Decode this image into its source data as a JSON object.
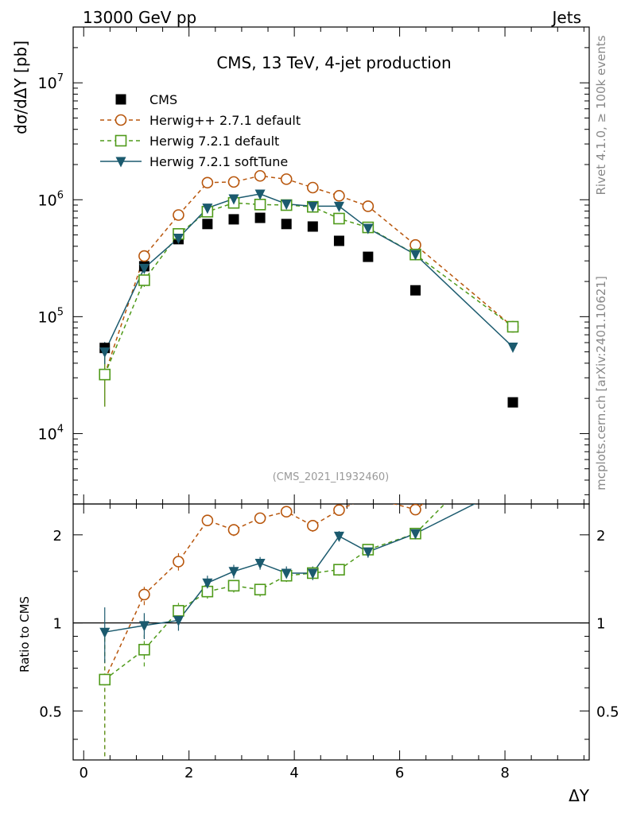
{
  "header": {
    "left": "13000 GeV pp",
    "right": "Jets"
  },
  "side_labels": {
    "rivet": "Rivet 4.1.0, ≥ 100k events",
    "mcplots": "mcplots.cern.ch [arXiv:2401.10621]"
  },
  "chart_data": {
    "type": "scatter",
    "title": "CMS, 13 TeV, 4-jet production",
    "analysis_tag": "(CMS_2021_I1932460)",
    "xlabel": "ΔY",
    "ylabel": "dσ/dΔY [pb]",
    "ratio_ylabel": "Ratio to CMS",
    "xlim": [
      -0.2,
      9.6
    ],
    "ylim": [
      2500,
      30000000
    ],
    "ratio_ylim": [
      0.34,
      2.55
    ],
    "x_ticks": [
      0,
      2,
      4,
      6,
      8
    ],
    "x_tick_labels": [
      "0",
      "2",
      "4",
      "6",
      "8"
    ],
    "y_ticks": [
      10000,
      100000,
      1000000,
      10000000
    ],
    "y_tick_labels": [
      {
        "base": "10",
        "exp": "4"
      },
      {
        "base": "10",
        "exp": "5"
      },
      {
        "base": "10",
        "exp": "6"
      },
      {
        "base": "10",
        "exp": "7"
      }
    ],
    "ratio_ticks": [
      0.5,
      1,
      2
    ],
    "ratio_tick_labels": [
      "0.5",
      "1",
      "2"
    ],
    "x": [
      0.4,
      1.15,
      1.8,
      2.35,
      2.85,
      3.35,
      3.85,
      4.35,
      4.85,
      5.4,
      6.3,
      8.15
    ],
    "series": [
      {
        "name": "CMS",
        "color": "#000000",
        "marker": "square-filled",
        "line": "none",
        "values": [
          54000,
          270000,
          460000,
          620000,
          680000,
          700000,
          620000,
          590000,
          445000,
          325000,
          168000,
          18500
        ],
        "ratio": [
          1,
          1,
          1,
          1,
          1,
          1,
          1,
          1,
          1,
          1,
          1,
          1
        ]
      },
      {
        "name": "Herwig++ 2.7.1 default",
        "color": "#b8560c",
        "marker": "circle-open",
        "line": "dashed",
        "values": [
          32000,
          330000,
          740000,
          1400000,
          1420000,
          1600000,
          1500000,
          1270000,
          1080000,
          880000,
          410000,
          82000
        ],
        "ratio": [
          0.64,
          1.25,
          1.62,
          2.24,
          2.08,
          2.28,
          2.4,
          2.15,
          2.43,
          2.7,
          2.44,
          4.4
        ],
        "ratio_err": [
          0.3,
          0.1,
          0.11,
          0.1,
          0.1,
          0.1,
          0.1,
          0.1,
          0.1,
          0.1,
          0.1,
          0.2
        ]
      },
      {
        "name": "Herwig 7.2.1 default",
        "color": "#4f9a1a",
        "marker": "square-open",
        "line": "dashed",
        "values": [
          32000,
          205000,
          510000,
          790000,
          940000,
          910000,
          900000,
          870000,
          690000,
          580000,
          340000,
          82000
        ],
        "ratio": [
          0.64,
          0.81,
          1.1,
          1.28,
          1.34,
          1.3,
          1.45,
          1.48,
          1.52,
          1.78,
          2.02,
          4.4
        ],
        "ratio_err": [
          0.3,
          0.1,
          0.07,
          0.07,
          0.07,
          0.07,
          0.07,
          0.07,
          0.07,
          0.07,
          0.07,
          0.1
        ]
      },
      {
        "name": "Herwig 7.2.1 softTune",
        "color": "#1b5a6e",
        "marker": "triangle-down-filled",
        "line": "solid",
        "values": [
          50000,
          260000,
          470000,
          850000,
          1020000,
          1120000,
          920000,
          880000,
          880000,
          570000,
          340000,
          55000
        ],
        "ratio": [
          0.93,
          0.98,
          1.02,
          1.37,
          1.5,
          1.6,
          1.48,
          1.48,
          1.98,
          1.75,
          2.02,
          2.97
        ],
        "ratio_err": [
          0.2,
          0.1,
          0.08,
          0.08,
          0.08,
          0.08,
          0.08,
          0.08,
          0.08,
          0.08,
          0.08,
          0.2
        ]
      }
    ],
    "legend_location": "top-left"
  }
}
